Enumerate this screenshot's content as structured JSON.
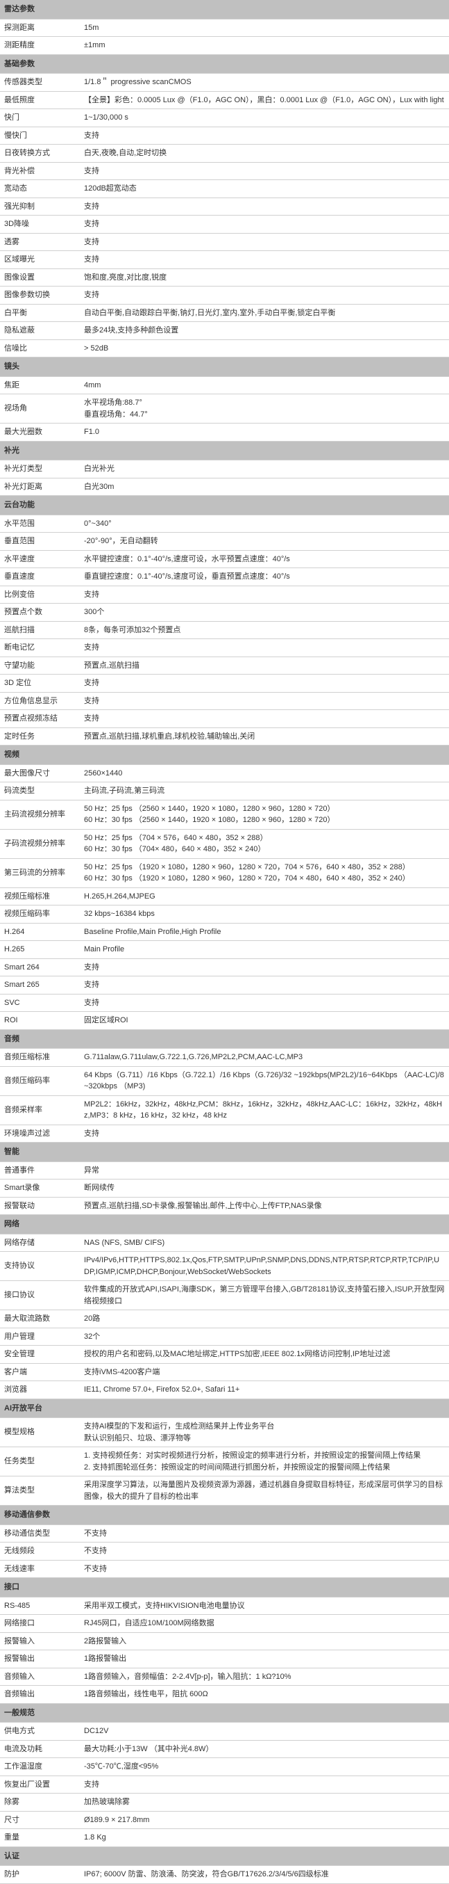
{
  "sections": [
    {
      "title": "雷达参数",
      "rows": [
        {
          "k": "探测距离",
          "v": "15m"
        },
        {
          "k": "测距精度",
          "v": "±1mm"
        }
      ]
    },
    {
      "title": "基础参数",
      "rows": [
        {
          "k": "传感器类型",
          "v": "1/1.8＂ progressive scanCMOS"
        },
        {
          "k": "最低照度",
          "v": "【全景】彩色：0.0005 Lux @（F1.0，AGC ON），黑白：0.0001 Lux @（F1.0，AGC ON），Lux with light"
        },
        {
          "k": "快门",
          "v": "1~1/30,000 s"
        },
        {
          "k": "慢快门",
          "v": "支持"
        },
        {
          "k": "日夜转换方式",
          "v": "白天,夜晚,自动,定时切换"
        },
        {
          "k": "背光补偿",
          "v": "支持"
        },
        {
          "k": "宽动态",
          "v": "120dB超宽动态"
        },
        {
          "k": "强光抑制",
          "v": "支持"
        },
        {
          "k": "3D降噪",
          "v": "支持"
        },
        {
          "k": "透雾",
          "v": "支持"
        },
        {
          "k": "区域曝光",
          "v": "支持"
        },
        {
          "k": "图像设置",
          "v": "饱和度,亮度,对比度,锐度"
        },
        {
          "k": "图像参数切换",
          "v": "支持"
        },
        {
          "k": "白平衡",
          "v": "自动白平衡,自动跟踪白平衡,钠灯,日光灯,室内,室外,手动白平衡,锁定白平衡"
        },
        {
          "k": "隐私遮蔽",
          "v": "最多24块,支持多种颜色设置"
        },
        {
          "k": "信噪比",
          "v": " > 52dB"
        }
      ]
    },
    {
      "title": "镜头",
      "rows": [
        {
          "k": "焦距",
          "v": "4mm"
        },
        {
          "k": "视场角",
          "v": "水平视场角:88.7°\n垂直视场角：44.7°"
        },
        {
          "k": "最大光圈数",
          "v": "F1.0"
        }
      ]
    },
    {
      "title": "补光",
      "rows": [
        {
          "k": "补光灯类型",
          "v": "白光补光"
        },
        {
          "k": "补光灯距离",
          "v": "白光30m"
        }
      ]
    },
    {
      "title": "云台功能",
      "rows": [
        {
          "k": "水平范围",
          "v": "0°~340°"
        },
        {
          "k": "垂直范围",
          "v": "-20°-90°，无自动翻转"
        },
        {
          "k": "水平速度",
          "v": "水平键控速度：0.1°-40°/s,速度可设，水平预置点速度：40°/s"
        },
        {
          "k": "垂直速度",
          "v": "垂直键控速度：0.1°-40°/s,速度可设，垂直预置点速度：40°/s"
        },
        {
          "k": "比例变倍",
          "v": "支持"
        },
        {
          "k": "预置点个数",
          "v": "300个"
        },
        {
          "k": "巡航扫描",
          "v": "8条，每条可添加32个预置点"
        },
        {
          "k": "断电记忆",
          "v": "支持"
        },
        {
          "k": "守望功能",
          "v": "预置点,巡航扫描"
        },
        {
          "k": "3D 定位",
          "v": "支持"
        },
        {
          "k": "方位角信息显示",
          "v": "支持"
        },
        {
          "k": "预置点视频冻结",
          "v": "支持"
        },
        {
          "k": "定时任务",
          "v": "预置点,巡航扫描,球机重启,球机校验,辅助输出,关闭"
        }
      ]
    },
    {
      "title": "视频",
      "rows": [
        {
          "k": "最大图像尺寸",
          "v": "2560×1440"
        },
        {
          "k": "码流类型",
          "v": "主码流,子码流,第三码流"
        },
        {
          "k": "主码流视频分辨率",
          "v": "50 Hz：25 fps （2560 × 1440，1920 × 1080，1280 × 960，1280 × 720）\n60 Hz：30 fps （2560 × 1440，1920 × 1080，1280 × 960，1280 × 720）"
        },
        {
          "k": "子码流视频分辨率",
          "v": "50 Hz：25 fps （704 × 576，640 × 480，352 × 288）\n60 Hz：30 fps （704× 480，640 × 480，352 × 240）"
        },
        {
          "k": "第三码流的分辨率",
          "v": "50 Hz：25 fps （1920 × 1080，1280 × 960，1280 × 720，704 × 576，640 × 480，352 × 288）\n60 Hz：30 fps （1920 × 1080，1280 × 960，1280 × 720，704 × 480，640 × 480，352 × 240）"
        },
        {
          "k": "视频压缩标准",
          "v": "H.265,H.264,MJPEG"
        },
        {
          "k": "视频压缩码率",
          "v": "32 kbps~16384 kbps"
        },
        {
          "k": "H.264",
          "v": "Baseline Profile,Main Profile,High Profile"
        },
        {
          "k": "H.265",
          "v": "Main Profile"
        },
        {
          "k": "Smart 264",
          "v": "支持"
        },
        {
          "k": "Smart 265",
          "v": "支持"
        },
        {
          "k": "SVC",
          "v": "支持"
        },
        {
          "k": "ROI",
          "v": "固定区域ROI"
        }
      ]
    },
    {
      "title": "音频",
      "rows": [
        {
          "k": "音频压缩标准",
          "v": "G.711alaw,G.711ulaw,G.722.1,G.726,MP2L2,PCM,AAC-LC,MP3"
        },
        {
          "k": "音频压缩码率",
          "v": "64 Kbps（G.711）/16 Kbps（G.722.1）/16 Kbps（G.726)/32 ~192kbps(MP2L2)/16~64Kbps （AAC-LC)/8~320kbps （MP3)"
        },
        {
          "k": "音频采样率",
          "v": "MP2L2：16kHz，32kHz，48kHz,PCM：8kHz，16kHz，32kHz，48kHz,AAC-LC：16kHz，32kHz，48kHz,MP3：8 kHz，16 kHz，32 kHz，48 kHz"
        },
        {
          "k": "环境噪声过滤",
          "v": "支持"
        }
      ]
    },
    {
      "title": "智能",
      "rows": [
        {
          "k": "普通事件",
          "v": "异常"
        },
        {
          "k": "Smart录像",
          "v": "断网续传"
        },
        {
          "k": "报警联动",
          "v": "预置点,巡航扫描,SD卡录像,报警输出,邮件,上传中心,上传FTP,NAS录像"
        }
      ]
    },
    {
      "title": "网络",
      "rows": [
        {
          "k": "网络存储",
          "v": "NAS (NFS, SMB/ CIFS)"
        },
        {
          "k": "支持协议",
          "v": "IPv4/IPv6,HTTP,HTTPS,802.1x,Qos,FTP,SMTP,UPnP,SNMP,DNS,DDNS,NTP,RTSP,RTCP,RTP,TCP/IP,UDP,IGMP,ICMP,DHCP,Bonjour,WebSocket/WebSockets"
        },
        {
          "k": "接口协议",
          "v": "软件集成的开放式API,ISAPI,海康SDK，第三方管理平台接入,GB/T28181协议,支持萤石接入,ISUP,开放型网络视频接口"
        },
        {
          "k": "最大取流路数",
          "v": "20路"
        },
        {
          "k": "用户管理",
          "v": "32个"
        },
        {
          "k": "安全管理",
          "v": "授权的用户名和密码,以及MAC地址绑定,HTTPS加密,IEEE 802.1x网络访问控制,IP地址过滤"
        },
        {
          "k": "客户端",
          "v": "支持iVMS-4200客户端"
        },
        {
          "k": "浏览器",
          "v": "IE11, Chrome 57.0+, Firefox 52.0+, Safari 11+"
        }
      ]
    },
    {
      "title": "AI开放平台",
      "rows": [
        {
          "k": "模型规格",
          "v": "支持AI模型的下发和运行，生成检测结果并上传业务平台\n默认识别船只、垃圾、漂浮物等"
        },
        {
          "k": "任务类型",
          "v": "1.    支持视频任务：对实时视频进行分析，按照设定的频率进行分析，并按照设定的报警间隔上传结果\n2.    支持抓图轮巡任务：按照设定的时间间隔进行抓图分析，并按照设定的报警间隔上传结果"
        },
        {
          "k": "算法类型",
          "v": "采用深度学习算法，以海量图片及视频资源为源器，通过机器自身提取目标特征，形成深层可供学习的目标图像，极大的提升了目标的检出率"
        }
      ]
    },
    {
      "title": "移动通信参数",
      "rows": [
        {
          "k": "移动通信类型",
          "v": "不支持"
        },
        {
          "k": "无线频段",
          "v": "不支持"
        },
        {
          "k": "无线速率",
          "v": "不支持"
        }
      ]
    },
    {
      "title": "接口",
      "rows": [
        {
          "k": "RS-485",
          "v": "采用半双工模式，支持HIKVISION电池电量协议"
        },
        {
          "k": "网络接口",
          "v": "RJ45网口，自适应10M/100M网络数据"
        },
        {
          "k": "报警输入",
          "v": "2路报警输入"
        },
        {
          "k": "报警输出",
          "v": "1路报警输出"
        },
        {
          "k": "音频输入",
          "v": "1路音频输入，音频幅值：2-2.4V[p-p]，输入阻抗：1 kΩ?10%"
        },
        {
          "k": "音频输出",
          "v": "1路音频输出，线性电平，阻抗 600Ω"
        }
      ]
    },
    {
      "title": "一般规范",
      "rows": [
        {
          "k": "供电方式",
          "v": "DC12V"
        },
        {
          "k": "电流及功耗",
          "v": "最大功耗:小于13W （其中补光4.8W）"
        },
        {
          "k": "工作温湿度",
          "v": "-35℃-70℃,湿度<95%"
        },
        {
          "k": "恢复出厂设置",
          "v": "支持"
        },
        {
          "k": "除雾",
          "v": "加热玻璃除雾"
        },
        {
          "k": "尺寸",
          "v": "Ø189.9 × 217.8mm"
        },
        {
          "k": "重量",
          "v": "1.8 Kg"
        }
      ]
    },
    {
      "title": "认证",
      "rows": [
        {
          "k": "防护",
          "v": "IP67; 6000V  防雷、防浪涌、防突波，符合GB/T17626.2/3/4/5/6四级标准"
        }
      ]
    }
  ]
}
